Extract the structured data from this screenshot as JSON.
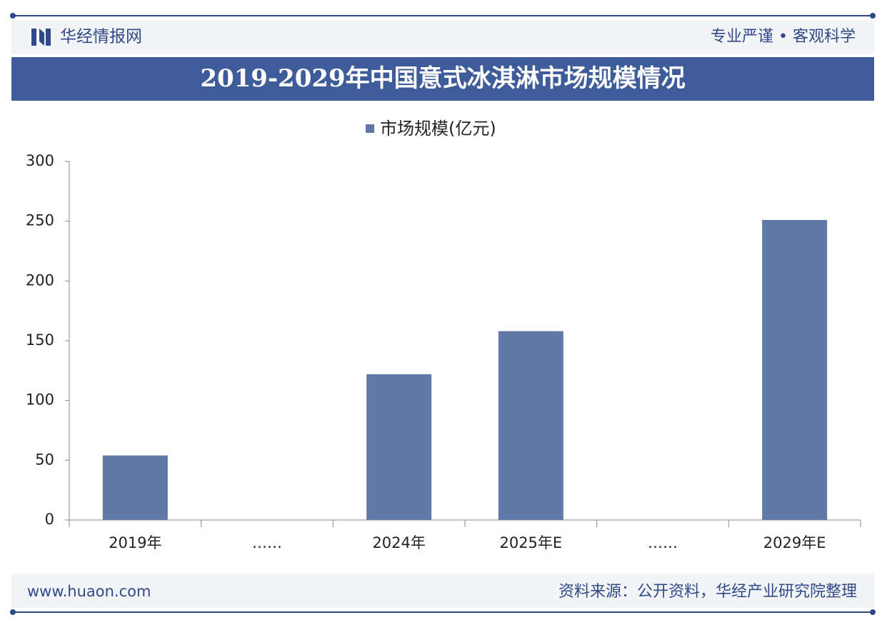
{
  "header": {
    "brand": "华经情报网",
    "slogan": "专业严谨 • 客观科学"
  },
  "chart_data": {
    "type": "bar",
    "title": "2019-2029年中国意式冰淇淋市场规模情况",
    "categories": [
      "2019年",
      "……",
      "2024年",
      "2025年E",
      "……",
      "2029年E"
    ],
    "series": [
      {
        "name": "市场规模(亿元)",
        "color": "#6179a7",
        "values": [
          54,
          null,
          122,
          158,
          null,
          251
        ]
      }
    ],
    "ylim": [
      0,
      300
    ],
    "yticks": [
      0,
      50,
      100,
      150,
      200,
      250,
      300
    ],
    "grid": false,
    "legend": "top"
  },
  "footer": {
    "website": "www.huaon.com",
    "source": "资料来源：公开资料，华经产业研究院整理"
  }
}
